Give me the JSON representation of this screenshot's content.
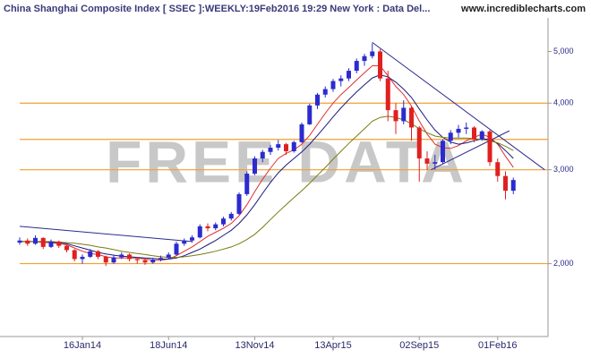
{
  "chart_data": {
    "type": "candlestick",
    "title": "China Shanghai Composite Index [ SSEC ]:WEEKLY:19Feb2016 19:29 New York : Data Del...",
    "source": "www.incrediblecharts.com",
    "watermark": "FREE DATA",
    "log_scale": true,
    "up_color": "#2b2bd0",
    "down_color": "#e02020",
    "categories": [
      null,
      null,
      null,
      null,
      null,
      null,
      null,
      null,
      "16Jan14",
      null,
      null,
      null,
      null,
      null,
      null,
      null,
      null,
      null,
      null,
      "18Jun14",
      null,
      null,
      null,
      null,
      null,
      null,
      null,
      null,
      null,
      null,
      "13Nov14",
      null,
      null,
      null,
      null,
      null,
      null,
      null,
      null,
      null,
      "13Apr15",
      null,
      null,
      null,
      null,
      null,
      null,
      null,
      null,
      null,
      null,
      "02Sep15",
      null,
      null,
      null,
      null,
      null,
      null,
      null,
      null,
      null,
      "01Feb16",
      null,
      null
    ],
    "open": [
      2190,
      2210,
      2180,
      2235,
      2150,
      2200,
      2160,
      2120,
      2040,
      2060,
      2110,
      2060,
      2010,
      2055,
      2080,
      2040,
      2030,
      2010,
      2035,
      2050,
      2080,
      2180,
      2210,
      2240,
      2350,
      2330,
      2370,
      2430,
      2480,
      2700,
      2950,
      3150,
      3240,
      3300,
      3350,
      3250,
      3380,
      3650,
      3960,
      4150,
      4250,
      4400,
      4450,
      4600,
      4800,
      4900,
      5000,
      4450,
      3880,
      3700,
      3920,
      3600,
      3150,
      3080,
      3100,
      3400,
      3520,
      3580,
      3600,
      3420,
      3540,
      3100,
      2920,
      2740
    ],
    "high": [
      2240,
      2230,
      2260,
      2240,
      2220,
      2210,
      2170,
      2130,
      2080,
      2130,
      2120,
      2070,
      2070,
      2100,
      2090,
      2060,
      2040,
      2050,
      2070,
      2100,
      2200,
      2230,
      2260,
      2370,
      2380,
      2390,
      2450,
      2500,
      2720,
      2980,
      3180,
      3270,
      3340,
      3410,
      3370,
      3400,
      3680,
      3990,
      4180,
      4300,
      4440,
      4510,
      4650,
      4850,
      4950,
      5180,
      5050,
      4600,
      4000,
      4050,
      3950,
      3620,
      3250,
      3200,
      3420,
      3560,
      3640,
      3680,
      3620,
      3560,
      3560,
      3150,
      2980,
      2900
    ],
    "low": [
      2170,
      2160,
      2170,
      2130,
      2140,
      2140,
      2100,
      2020,
      2000,
      2050,
      2040,
      1980,
      2000,
      2040,
      2020,
      2000,
      1990,
      2000,
      2020,
      2040,
      2070,
      2160,
      2190,
      2230,
      2300,
      2310,
      2350,
      2410,
      2470,
      2680,
      2930,
      3100,
      3200,
      3260,
      3200,
      3230,
      3370,
      3640,
      3900,
      4100,
      4200,
      4300,
      4400,
      4550,
      4700,
      4850,
      4400,
      3700,
      3500,
      3650,
      3400,
      2850,
      3000,
      3000,
      3080,
      3350,
      3450,
      3500,
      3380,
      3400,
      3050,
      2850,
      2640,
      2700
    ],
    "close": [
      2210,
      2180,
      2235,
      2150,
      2200,
      2160,
      2120,
      2040,
      2060,
      2110,
      2060,
      2010,
      2055,
      2080,
      2040,
      2030,
      2010,
      2035,
      2050,
      2080,
      2180,
      2210,
      2240,
      2350,
      2330,
      2370,
      2430,
      2480,
      2700,
      2950,
      3150,
      3240,
      3300,
      3350,
      3250,
      3380,
      3650,
      3960,
      4150,
      4250,
      4400,
      4450,
      4600,
      4800,
      4900,
      5000,
      4450,
      3880,
      3700,
      3920,
      3600,
      3150,
      3080,
      3100,
      3400,
      3520,
      3580,
      3600,
      3420,
      3540,
      3100,
      2920,
      2740,
      2870
    ],
    "averages": [
      {
        "color": "#e03030",
        "values": [
          2200,
          2200,
          2200,
          2190,
          2190,
          2180,
          2170,
          2140,
          2110,
          2090,
          2080,
          2060,
          2050,
          2050,
          2050,
          2050,
          2040,
          2030,
          2030,
          2040,
          2070,
          2110,
          2150,
          2200,
          2250,
          2290,
          2330,
          2380,
          2460,
          2580,
          2730,
          2880,
          3020,
          3150,
          3220,
          3270,
          3350,
          3480,
          3650,
          3830,
          4000,
          4150,
          4280,
          4420,
          4560,
          4700,
          4700,
          4500,
          4300,
          4150,
          3950,
          3700,
          3500,
          3350,
          3300,
          3290,
          3330,
          3400,
          3450,
          3500,
          3450,
          3350,
          3180,
          3030
        ]
      },
      {
        "color": "#1a1a80",
        "values": [
          2200,
          2200,
          2200,
          2200,
          2195,
          2190,
          2180,
          2160,
          2140,
          2120,
          2100,
          2085,
          2075,
          2065,
          2060,
          2055,
          2050,
          2045,
          2040,
          2040,
          2050,
          2070,
          2100,
          2130,
          2170,
          2210,
          2260,
          2310,
          2380,
          2470,
          2580,
          2710,
          2840,
          2960,
          3060,
          3150,
          3240,
          3350,
          3480,
          3620,
          3770,
          3920,
          4060,
          4200,
          4330,
          4460,
          4520,
          4480,
          4380,
          4250,
          4100,
          3900,
          3720,
          3560,
          3450,
          3380,
          3350,
          3370,
          3400,
          3430,
          3420,
          3360,
          3260,
          3150
        ]
      },
      {
        "color": "#7a7a10",
        "values": [
          2200,
          2200,
          2200,
          2200,
          2200,
          2195,
          2190,
          2185,
          2175,
          2165,
          2150,
          2140,
          2125,
          2110,
          2100,
          2090,
          2080,
          2070,
          2060,
          2055,
          2055,
          2060,
          2070,
          2080,
          2095,
          2110,
          2130,
          2150,
          2180,
          2220,
          2270,
          2340,
          2420,
          2500,
          2580,
          2660,
          2740,
          2830,
          2930,
          3030,
          3140,
          3250,
          3360,
          3470,
          3580,
          3700,
          3760,
          3780,
          3760,
          3720,
          3660,
          3580,
          3520,
          3470,
          3450,
          3440,
          3440,
          3440,
          3430,
          3420,
          3400,
          3370,
          3320,
          3260
        ]
      }
    ],
    "hlines": [
      2000,
      3000,
      3420,
      4000
    ],
    "hline_color": "#f0a030",
    "trendlines": [
      {
        "x": [
          0,
          22
        ],
        "y": [
          2350,
          2200
        ]
      },
      {
        "x": [
          45,
          67
        ],
        "y": [
          5200,
          3000
        ]
      },
      {
        "x": [
          52.5,
          62.5
        ],
        "y": [
          3000,
          3550
        ]
      }
    ],
    "trendline_color": "#2a2a90",
    "ylim": [
      1460,
      5780
    ],
    "yticks": [
      {
        "value": 2000,
        "label": "2,000"
      },
      {
        "value": 3000,
        "label": "3,000"
      },
      {
        "value": 4000,
        "label": "4,000"
      },
      {
        "value": 5000,
        "label": "5,000"
      }
    ]
  }
}
